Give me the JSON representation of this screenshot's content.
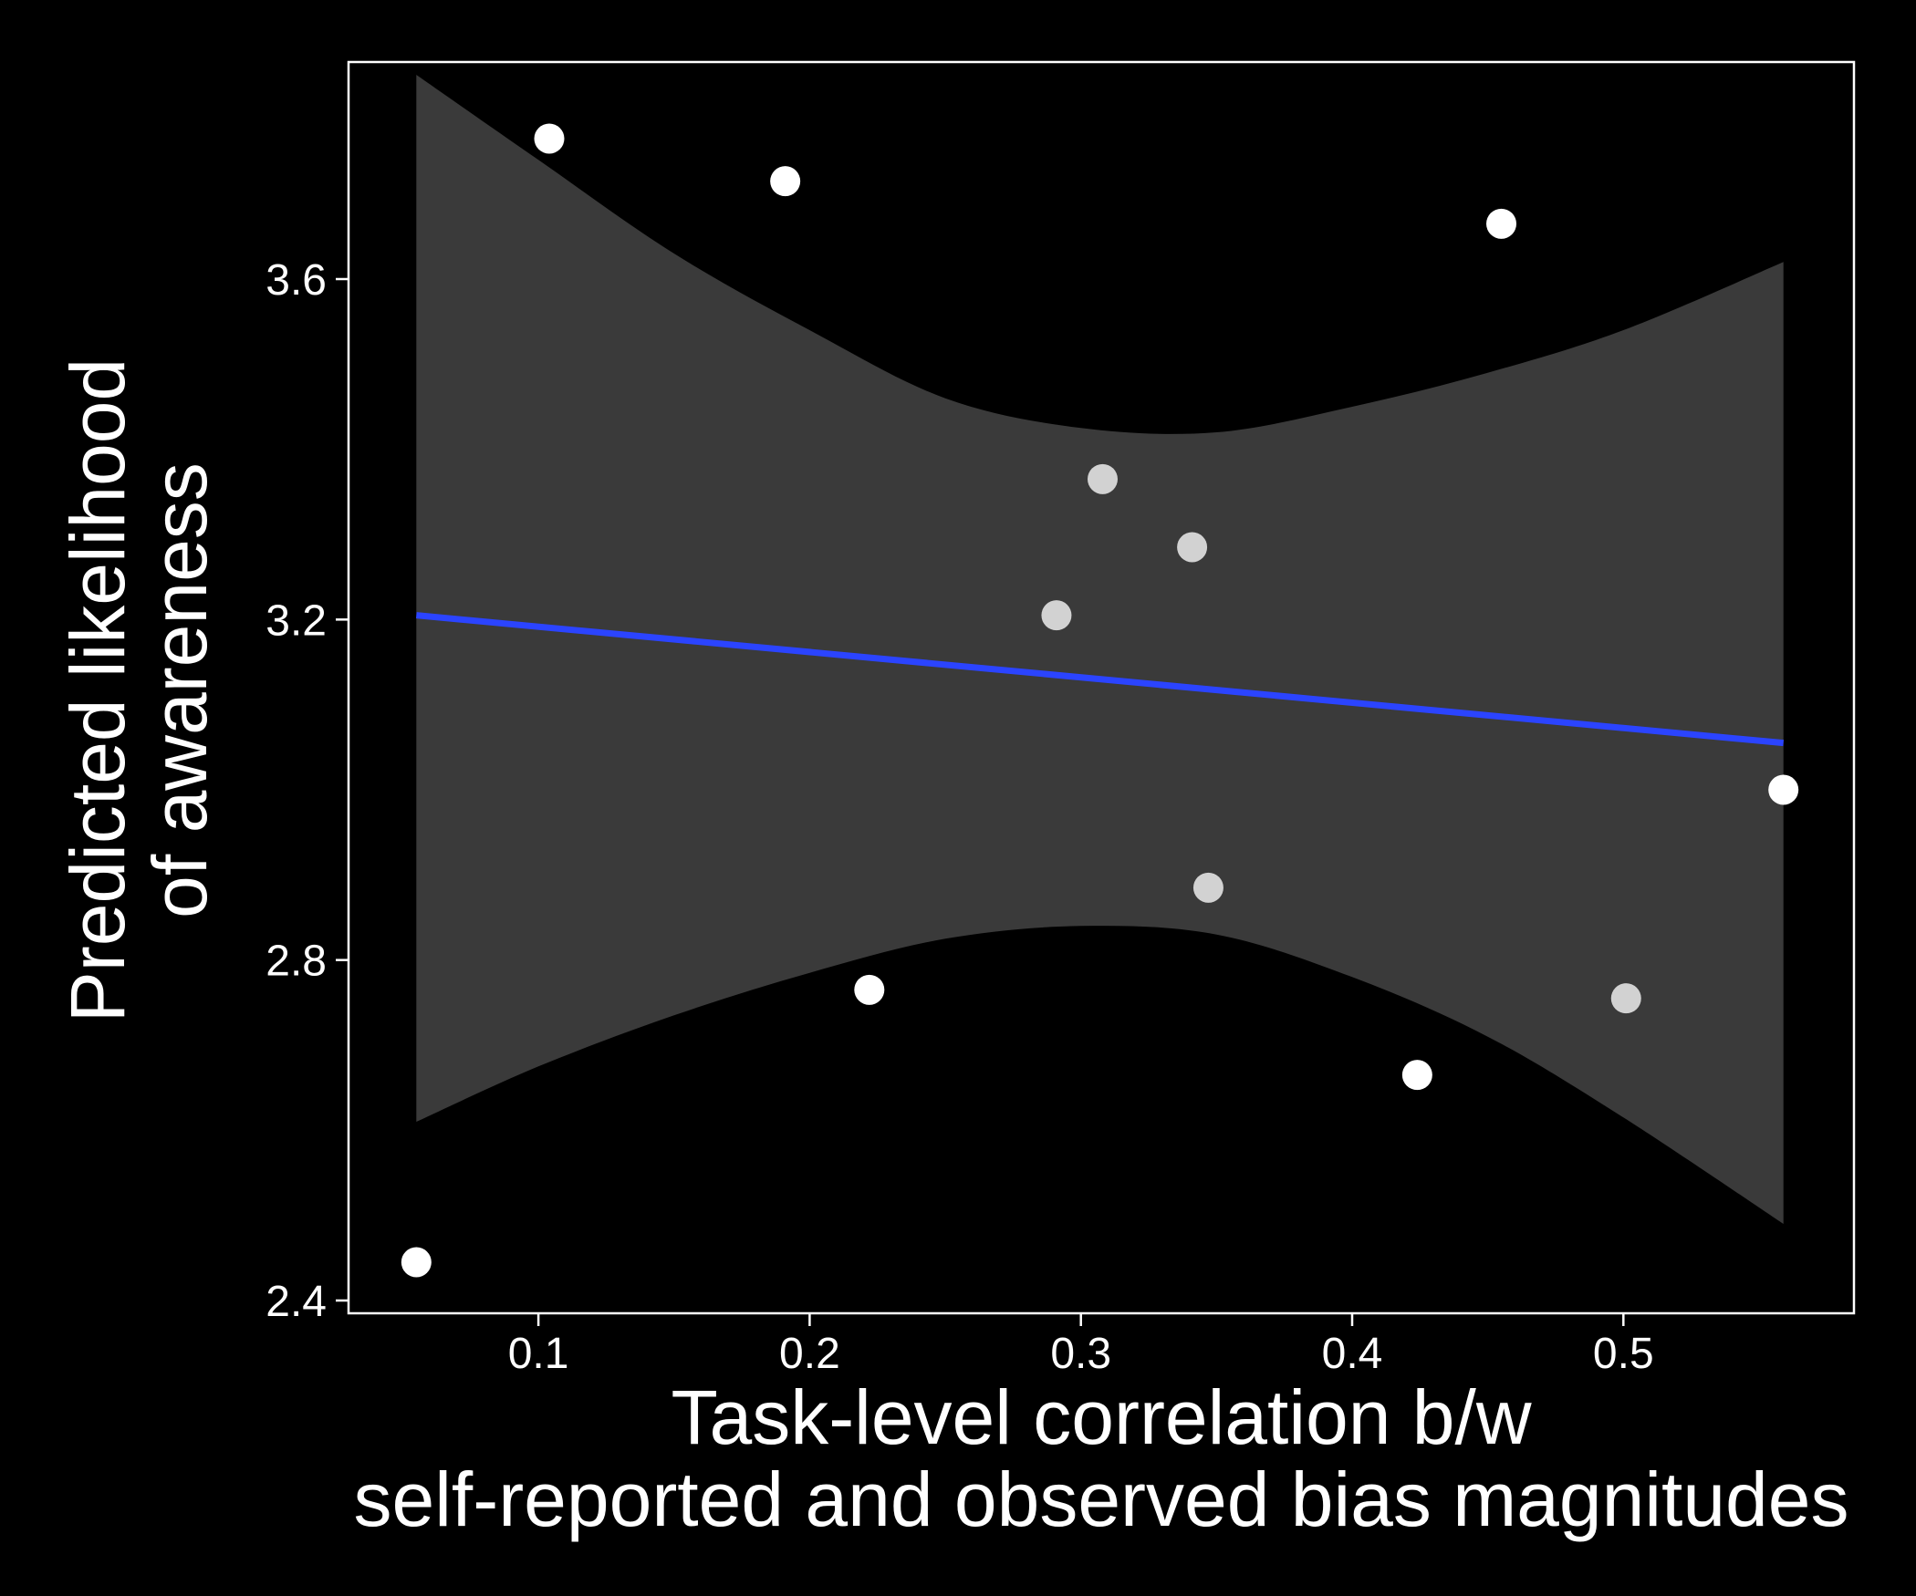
{
  "chart_data": {
    "type": "scatter",
    "title": "",
    "xlabel_lines": [
      "Task-level correlation b/w",
      "self-reported and observed bias magnitudes"
    ],
    "ylabel_lines": [
      "Predicted likelihood",
      "of awareness"
    ],
    "xlim": [
      0.03,
      0.585
    ],
    "ylim": [
      2.385,
      3.855
    ],
    "xticks": [
      0.1,
      0.2,
      0.3,
      0.4,
      0.5
    ],
    "xtick_labels": [
      "0.1",
      "0.2",
      "0.3",
      "0.4",
      "0.5"
    ],
    "yticks": [
      2.4,
      2.8,
      3.2,
      3.6
    ],
    "ytick_labels": [
      "2.4",
      "2.8",
      "3.2",
      "3.6"
    ],
    "grid": false,
    "legend": "none",
    "points": [
      {
        "x": 0.055,
        "y": 2.445,
        "shade": "white"
      },
      {
        "x": 0.104,
        "y": 3.765,
        "shade": "white"
      },
      {
        "x": 0.191,
        "y": 3.715,
        "shade": "white"
      },
      {
        "x": 0.222,
        "y": 2.765,
        "shade": "white"
      },
      {
        "x": 0.291,
        "y": 3.205,
        "shade": "light"
      },
      {
        "x": 0.308,
        "y": 3.365,
        "shade": "light"
      },
      {
        "x": 0.341,
        "y": 3.285,
        "shade": "light"
      },
      {
        "x": 0.347,
        "y": 2.885,
        "shade": "light"
      },
      {
        "x": 0.424,
        "y": 2.665,
        "shade": "white"
      },
      {
        "x": 0.455,
        "y": 3.665,
        "shade": "white"
      },
      {
        "x": 0.501,
        "y": 2.755,
        "shade": "light"
      },
      {
        "x": 0.559,
        "y": 3.0,
        "shade": "white"
      }
    ],
    "fit_line": {
      "x": [
        0.055,
        0.559
      ],
      "y": [
        3.205,
        3.055
      ]
    },
    "confidence_band": {
      "x": [
        0.055,
        0.1,
        0.15,
        0.2,
        0.25,
        0.3,
        0.35,
        0.4,
        0.45,
        0.5,
        0.559
      ],
      "upper": [
        3.84,
        3.74,
        3.63,
        3.54,
        3.46,
        3.425,
        3.42,
        3.45,
        3.49,
        3.54,
        3.62
      ],
      "lower": [
        2.61,
        2.675,
        2.735,
        2.785,
        2.825,
        2.84,
        2.83,
        2.78,
        2.71,
        2.615,
        2.49
      ]
    },
    "colors": {
      "background": "#000000",
      "band": "#3a3a3a",
      "fit_line": "#2b44ff",
      "point_white": "#ffffff",
      "point_light": "#d2d2d2",
      "axis": "#ffffff"
    }
  }
}
